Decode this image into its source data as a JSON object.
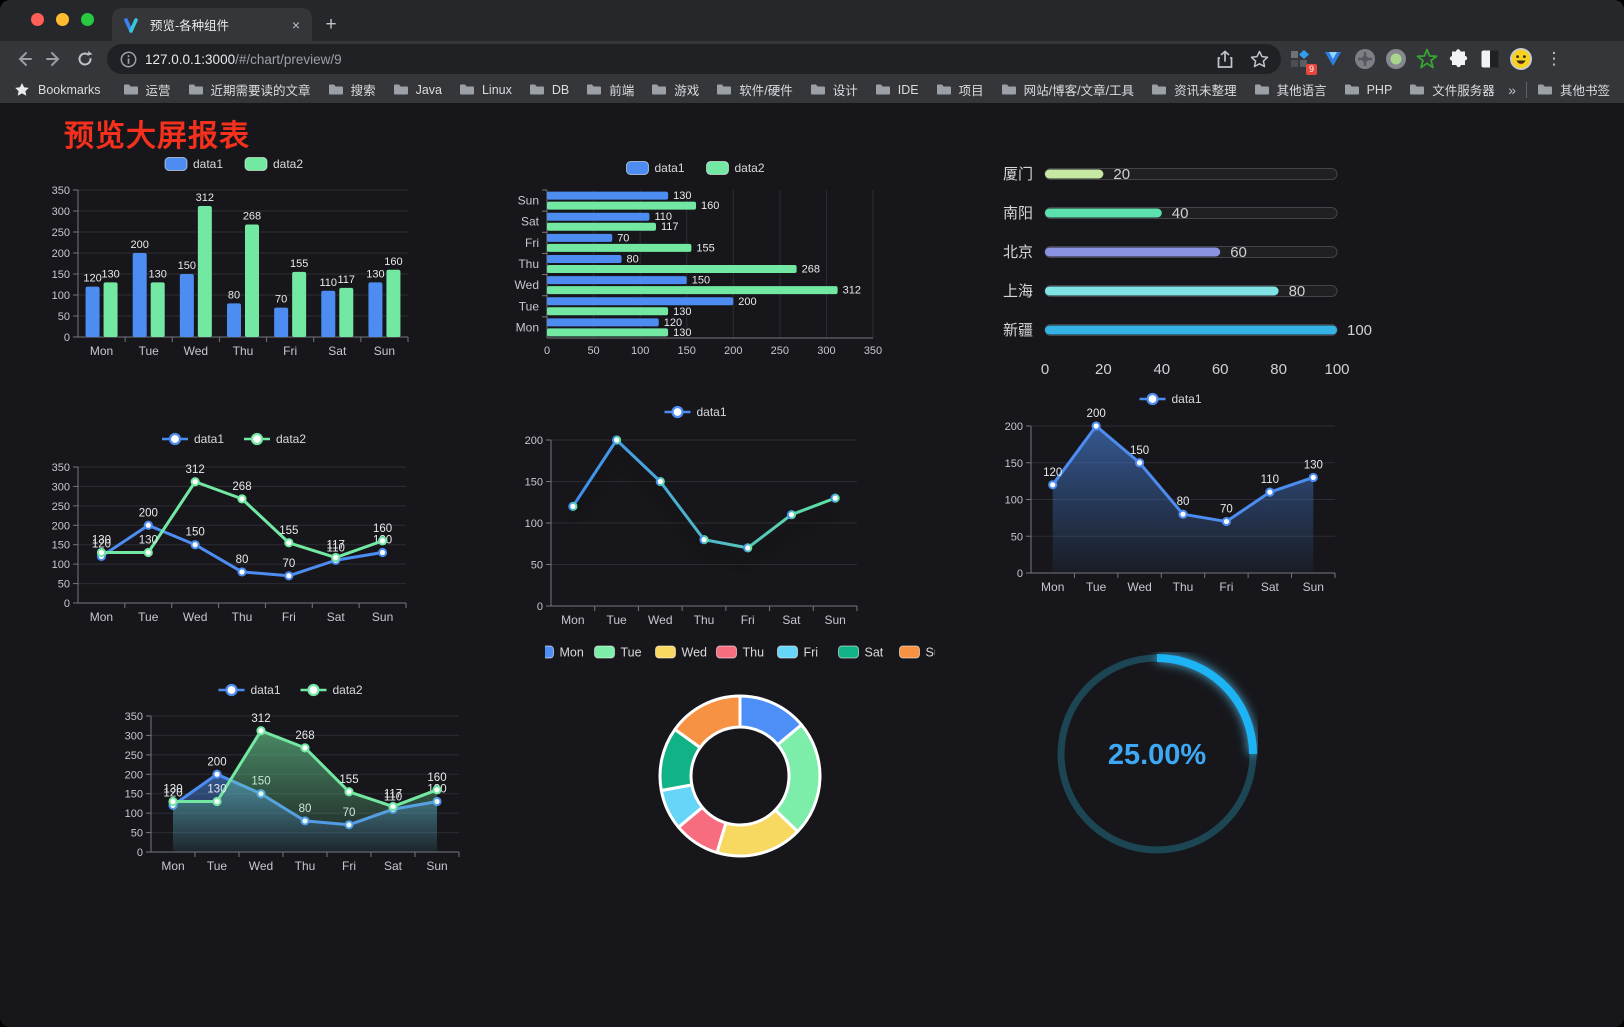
{
  "browser": {
    "tab_title": "预览-各种组件",
    "new_tab_glyph": "+",
    "close_glyph": "×",
    "url_host": "127.0.0.1:3000",
    "url_path": "/#/chart/preview/9",
    "bookmarks_label": "Bookmarks",
    "bookmarks": [
      "运营",
      "近期需要读的文章",
      "搜索",
      "Java",
      "Linux",
      "DB",
      "前端",
      "游戏",
      "软件/硬件",
      "设计",
      "IDE",
      "项目",
      "网站/博客/文章/工具",
      "资讯未整理",
      "其他语言",
      "PHP",
      "文件服务器"
    ],
    "overflow_chevron": "»",
    "other_bookmarks": "其他书签",
    "extension_badge": "9",
    "menu_glyph": "⋮"
  },
  "page": {
    "title": "预览大屏报表",
    "title_color": "#f5301d",
    "background": "#17171b"
  },
  "chart_data": [
    {
      "id": "bar-grouped",
      "type": "bar",
      "legend_position": "top",
      "grid": true,
      "categories": [
        "Mon",
        "Tue",
        "Wed",
        "Thu",
        "Fri",
        "Sat",
        "Sun"
      ],
      "series": [
        {
          "name": "data1",
          "color": "#4d8df2",
          "values": [
            120,
            200,
            150,
            80,
            70,
            110,
            130
          ]
        },
        {
          "name": "data2",
          "color": "#73e8a2",
          "values": [
            130,
            130,
            312,
            268,
            155,
            117,
            160
          ]
        }
      ],
      "ylim": [
        0,
        350
      ],
      "ystep": 50,
      "labels": true
    },
    {
      "id": "hbar-grouped",
      "type": "hbar",
      "legend_position": "top",
      "grid": true,
      "categories": [
        "Mon",
        "Tue",
        "Wed",
        "Thu",
        "Fri",
        "Sat",
        "Sun"
      ],
      "series": [
        {
          "name": "data1",
          "color": "#4d8df2",
          "values": [
            120,
            200,
            150,
            80,
            70,
            110,
            130
          ]
        },
        {
          "name": "data2",
          "color": "#73e8a2",
          "values": [
            130,
            130,
            312,
            268,
            155,
            117,
            160
          ]
        }
      ],
      "xlim": [
        0,
        350
      ],
      "xstep": 50,
      "labels": true
    },
    {
      "id": "progress-bars",
      "type": "progress",
      "max": 100,
      "xticks": [
        0,
        20,
        40,
        60,
        80,
        100
      ],
      "items": [
        {
          "label": "厦门",
          "value": 20,
          "color": "#c6e8a2"
        },
        {
          "label": "南阳",
          "value": 40,
          "color": "#5ce0ae"
        },
        {
          "label": "北京",
          "value": 60,
          "color": "#8a92e2"
        },
        {
          "label": "上海",
          "value": 80,
          "color": "#7fe3e6"
        },
        {
          "label": "新疆",
          "value": 100,
          "color": "#35b2e5"
        }
      ]
    },
    {
      "id": "line-two",
      "type": "line",
      "legend_position": "top",
      "grid": true,
      "categories": [
        "Mon",
        "Tue",
        "Wed",
        "Thu",
        "Fri",
        "Sat",
        "Sun"
      ],
      "series": [
        {
          "name": "data1",
          "color": "#4d8df2",
          "values": [
            120,
            200,
            150,
            80,
            70,
            110,
            130
          ]
        },
        {
          "name": "data2",
          "color": "#73e8a2",
          "values": [
            130,
            130,
            312,
            268,
            155,
            117,
            160
          ]
        }
      ],
      "ylim": [
        0,
        350
      ],
      "ystep": 50,
      "labels": true
    },
    {
      "id": "line-gradient",
      "type": "line",
      "legend_position": "top",
      "grid": true,
      "categories": [
        "Mon",
        "Tue",
        "Wed",
        "Thu",
        "Fri",
        "Sat",
        "Sun"
      ],
      "series": [
        {
          "name": "data1",
          "color": "#4d8df2",
          "gradient": [
            "#3f8cf3",
            "#5fe3a1"
          ],
          "shadow": true,
          "values": [
            120,
            200,
            150,
            80,
            70,
            110,
            130
          ]
        }
      ],
      "ylim": [
        0,
        200
      ],
      "ystep": 50,
      "labels": false
    },
    {
      "id": "area-one",
      "type": "line",
      "legend_position": "top",
      "grid": true,
      "categories": [
        "Mon",
        "Tue",
        "Wed",
        "Thu",
        "Fri",
        "Sat",
        "Sun"
      ],
      "series": [
        {
          "name": "data1",
          "color": "#4d8df2",
          "area": true,
          "values": [
            120,
            200,
            150,
            80,
            70,
            110,
            130
          ]
        }
      ],
      "ylim": [
        0,
        200
      ],
      "ystep": 50,
      "labels": true
    },
    {
      "id": "area-two",
      "type": "line",
      "legend_position": "top",
      "grid": true,
      "categories": [
        "Mon",
        "Tue",
        "Wed",
        "Thu",
        "Fri",
        "Sat",
        "Sun"
      ],
      "series": [
        {
          "name": "data1",
          "color": "#4d8df2",
          "area": true,
          "values": [
            120,
            200,
            150,
            80,
            70,
            110,
            130
          ]
        },
        {
          "name": "data2",
          "color": "#73e8a2",
          "area": true,
          "values": [
            130,
            130,
            312,
            268,
            155,
            117,
            160
          ]
        }
      ],
      "ylim": [
        0,
        350
      ],
      "ystep": 50,
      "labels": true
    },
    {
      "id": "pie-donut",
      "type": "pie",
      "legend_position": "top",
      "items": [
        {
          "label": "Mon",
          "value": 120,
          "color": "#4e8ef7"
        },
        {
          "label": "Tue",
          "value": 200,
          "color": "#7dedaa"
        },
        {
          "label": "Wed",
          "value": 150,
          "color": "#f7d961"
        },
        {
          "label": "Thu",
          "value": 80,
          "color": "#f76c7f"
        },
        {
          "label": "Fri",
          "value": 70,
          "color": "#67d5f7"
        },
        {
          "label": "Sat",
          "value": 110,
          "color": "#12b287"
        },
        {
          "label": "Sun",
          "value": 130,
          "color": "#f79243"
        }
      ]
    },
    {
      "id": "gauge-ring",
      "type": "gauge",
      "label": "25.00%",
      "percent": 25,
      "color": "#1db4f5",
      "track_color": "#1c4654",
      "text_color": "#3da8f4"
    }
  ]
}
